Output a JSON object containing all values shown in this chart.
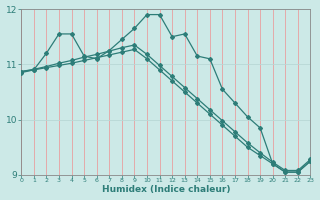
{
  "xlabel": "Humidex (Indice chaleur)",
  "bg_color": "#cce9e7",
  "line_color": "#2d7d78",
  "red_grid_color": "#e8a0a0",
  "white_grid_color": "#b8d8d6",
  "xmin": 0,
  "xmax": 23,
  "ymin": 9,
  "ymax": 12,
  "yticks": [
    9,
    10,
    11,
    12
  ],
  "xticks": [
    0,
    1,
    2,
    3,
    4,
    5,
    6,
    7,
    8,
    9,
    10,
    11,
    12,
    13,
    14,
    15,
    16,
    17,
    18,
    19,
    20,
    21,
    22,
    23
  ],
  "line1_x": [
    0,
    1,
    2,
    3,
    4,
    5,
    6,
    7,
    8,
    9,
    10,
    11,
    12,
    13,
    14,
    15,
    16,
    17,
    18,
    19,
    20,
    21,
    22,
    23
  ],
  "line1_y": [
    10.85,
    10.9,
    11.2,
    11.55,
    11.55,
    11.15,
    11.1,
    11.25,
    11.45,
    11.65,
    11.9,
    11.9,
    11.5,
    11.55,
    11.15,
    11.1,
    10.55,
    10.3,
    10.05,
    9.85,
    9.2,
    9.05,
    9.05,
    9.25
  ],
  "line2_x": [
    0,
    1,
    2,
    3,
    4,
    5,
    6,
    7,
    8,
    9,
    10,
    11,
    12,
    13,
    14,
    15,
    16,
    17,
    18,
    19,
    20,
    21,
    22,
    23
  ],
  "line2_y": [
    10.87,
    10.9,
    10.94,
    10.98,
    11.02,
    11.07,
    11.12,
    11.17,
    11.22,
    11.27,
    11.1,
    10.9,
    10.7,
    10.5,
    10.3,
    10.1,
    9.9,
    9.7,
    9.5,
    9.35,
    9.2,
    9.05,
    9.05,
    9.25
  ],
  "line3_x": [
    0,
    1,
    2,
    3,
    4,
    5,
    6,
    7,
    8,
    9,
    10,
    11,
    12,
    13,
    14,
    15,
    16,
    17,
    18,
    19,
    20,
    21,
    22,
    23
  ],
  "line3_y": [
    10.87,
    10.91,
    10.96,
    11.02,
    11.07,
    11.13,
    11.18,
    11.24,
    11.3,
    11.35,
    11.18,
    10.98,
    10.78,
    10.58,
    10.38,
    10.18,
    9.98,
    9.78,
    9.58,
    9.4,
    9.23,
    9.08,
    9.08,
    9.28
  ]
}
